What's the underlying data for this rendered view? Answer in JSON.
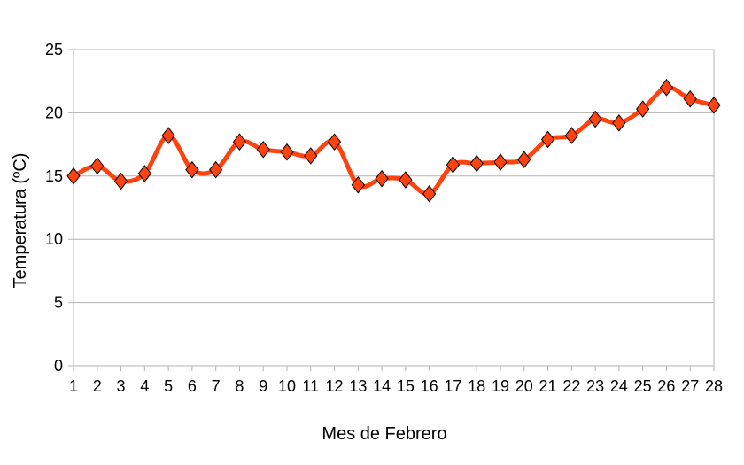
{
  "chart_data": {
    "type": "line",
    "title": "",
    "xlabel": "Mes de Febrero",
    "ylabel": "Temperatura (ºC)",
    "x": [
      1,
      2,
      3,
      4,
      5,
      6,
      7,
      8,
      9,
      10,
      11,
      12,
      13,
      14,
      15,
      16,
      17,
      18,
      19,
      20,
      21,
      22,
      23,
      24,
      25,
      26,
      27,
      28
    ],
    "x_tick_labels": [
      "1",
      "2",
      "3",
      "4",
      "5",
      "6",
      "7",
      "8",
      "9",
      "10",
      "11",
      "12",
      "13",
      "14",
      "15",
      "16",
      "17",
      "18",
      "19",
      "20",
      "21",
      "22",
      "23",
      "24",
      "25",
      "26",
      "27",
      "28"
    ],
    "series": [
      {
        "values": [
          15.0,
          15.8,
          14.6,
          15.2,
          18.2,
          15.5,
          15.5,
          17.7,
          17.1,
          16.9,
          16.6,
          17.7,
          14.3,
          14.8,
          14.7,
          13.6,
          15.9,
          16.0,
          16.1,
          16.3,
          17.9,
          18.2,
          19.5,
          19.2,
          20.3,
          22.0,
          21.1,
          20.6
        ],
        "color": "#ff420e",
        "marker": "diamond"
      }
    ],
    "ylim": [
      0,
      25
    ],
    "y_ticks": [
      0,
      5,
      10,
      15,
      20,
      25
    ],
    "grid": true,
    "legend": "none",
    "colors": {
      "grid": "#b3b3b3",
      "line": "#ff420e",
      "marker_stroke": "#000000"
    }
  }
}
